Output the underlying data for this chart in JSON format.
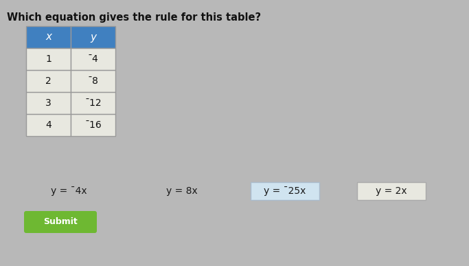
{
  "title": "Which equation gives the rule for this table?",
  "title_fontsize": 10.5,
  "title_color": "#111111",
  "bg_color": "#b8b8b8",
  "table_x": [
    "1",
    "2",
    "3",
    "4"
  ],
  "table_y": [
    "$^{-}$4",
    "$^{-}$8",
    "$^{-}$12",
    "$^{-}$16"
  ],
  "table_y_plain": [
    "¯4",
    "¯8",
    "¯12",
    "¯16"
  ],
  "table_header_x": "x",
  "table_header_y": "y",
  "table_header_bg": "#4080c0",
  "table_header_text_color": "#ffffff",
  "table_cell_bg": "#e8e8e0",
  "table_border_color": "#999999",
  "options": [
    {
      "text": "y = ¯4x",
      "box": false,
      "box_color": "#e8e8e0",
      "border": "#999999"
    },
    {
      "text": "y = 8x",
      "box": false,
      "box_color": "#e8e8e0",
      "border": "#aaaaaa"
    },
    {
      "text": "y = ¯25x",
      "box": true,
      "box_color": "#d0e4f0",
      "border": "#aabbcc"
    },
    {
      "text": "y = 2x",
      "box": true,
      "box_color": "#e8e8e0",
      "border": "#aaaaaa"
    }
  ],
  "submit_label": "Submit",
  "submit_bg": "#6eb832",
  "submit_text_color": "#ffffff",
  "submit_fontsize": 9,
  "fig_w": 6.83,
  "fig_h": 3.87,
  "dpi": 100
}
